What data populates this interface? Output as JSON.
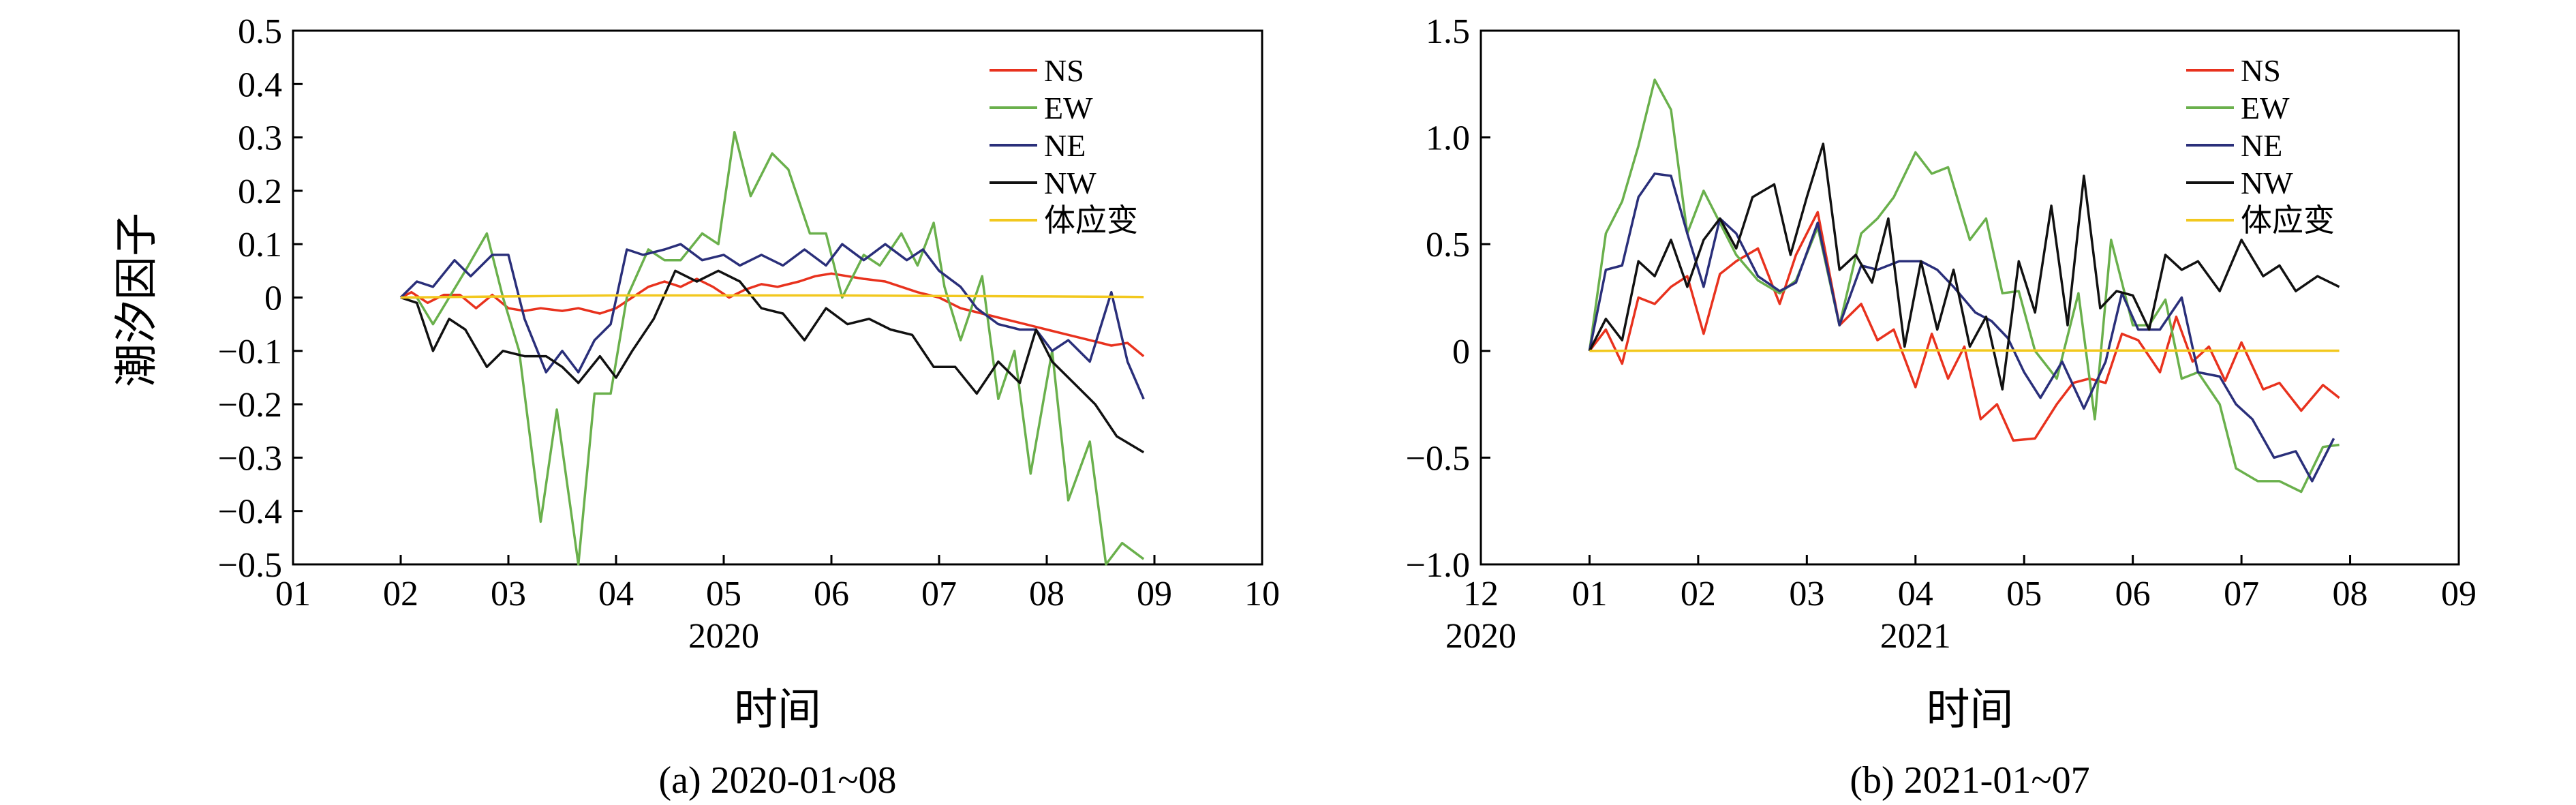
{
  "y_axis_label": "潮汐因子",
  "chart_data": [
    {
      "type": "line",
      "caption": "(a) 2020-01~08",
      "xlabel": "时间",
      "year_label": "2020",
      "x_ticks": [
        "01",
        "02",
        "03",
        "04",
        "05",
        "06",
        "07",
        "08",
        "09",
        "10"
      ],
      "xlim": [
        1,
        10
      ],
      "ylim": [
        -0.5,
        0.5
      ],
      "y_ticks": [
        "−0.5",
        "−0.4",
        "−0.3",
        "−0.2",
        "−0.1",
        "0",
        "0.1",
        "0.2",
        "0.3",
        "0.4",
        "0.5"
      ],
      "legend_position": "top-right",
      "series": [
        {
          "name": "NS",
          "color": "#e8321e",
          "x": [
            2.0,
            2.1,
            2.25,
            2.4,
            2.55,
            2.7,
            2.85,
            3.0,
            3.15,
            3.3,
            3.5,
            3.65,
            3.85,
            4.0,
            4.15,
            4.3,
            4.45,
            4.6,
            4.75,
            4.9,
            5.05,
            5.2,
            5.35,
            5.5,
            5.7,
            5.85,
            6.0,
            6.15,
            6.3,
            6.5,
            6.65,
            6.8,
            7.0,
            7.2,
            7.4,
            7.6,
            7.8,
            8.0,
            8.2,
            8.4,
            8.6,
            8.75,
            8.9
          ],
          "y": [
            0,
            0.01,
            -0.01,
            0.005,
            0.005,
            -0.02,
            0.005,
            -0.02,
            -0.025,
            -0.02,
            -0.025,
            -0.02,
            -0.03,
            -0.02,
            0,
            0.02,
            0.03,
            0.02,
            0.035,
            0.02,
            0,
            0.015,
            0.025,
            0.02,
            0.03,
            0.04,
            0.045,
            0.04,
            0.035,
            0.03,
            0.02,
            0.01,
            0,
            -0.02,
            -0.03,
            -0.04,
            -0.05,
            -0.06,
            -0.07,
            -0.08,
            -0.09,
            -0.085,
            -0.11
          ]
        },
        {
          "name": "EW",
          "color": "#6ab04c",
          "x": [
            2.0,
            2.15,
            2.3,
            2.45,
            2.6,
            2.8,
            2.95,
            3.1,
            3.3,
            3.45,
            3.65,
            3.8,
            3.95,
            4.1,
            4.3,
            4.45,
            4.6,
            4.8,
            4.95,
            5.1,
            5.25,
            5.45,
            5.6,
            5.8,
            5.95,
            6.1,
            6.3,
            6.45,
            6.65,
            6.8,
            6.95,
            7.05,
            7.2,
            7.4,
            7.55,
            7.7,
            7.85,
            8.05,
            8.2,
            8.4,
            8.55,
            8.7,
            8.9
          ],
          "y": [
            0,
            0,
            -0.05,
            0,
            0.05,
            0.12,
            0,
            -0.1,
            -0.42,
            -0.21,
            -0.5,
            -0.18,
            -0.18,
            0,
            0.09,
            0.07,
            0.07,
            0.12,
            0.1,
            0.31,
            0.19,
            0.27,
            0.24,
            0.12,
            0.12,
            0,
            0.08,
            0.06,
            0.12,
            0.06,
            0.14,
            0.02,
            -0.08,
            0.04,
            -0.19,
            -0.1,
            -0.33,
            -0.1,
            -0.38,
            -0.27,
            -0.5,
            -0.46,
            -0.49
          ]
        },
        {
          "name": "NE",
          "color": "#2a2f7a",
          "x": [
            2.0,
            2.15,
            2.3,
            2.5,
            2.65,
            2.85,
            3.0,
            3.15,
            3.35,
            3.5,
            3.65,
            3.8,
            3.95,
            4.1,
            4.25,
            4.45,
            4.6,
            4.8,
            5.0,
            5.15,
            5.35,
            5.55,
            5.75,
            5.95,
            6.1,
            6.3,
            6.5,
            6.7,
            6.85,
            7.0,
            7.2,
            7.35,
            7.55,
            7.75,
            7.9,
            8.05,
            8.2,
            8.4,
            8.6,
            8.75,
            8.9
          ],
          "y": [
            0,
            0.03,
            0.02,
            0.07,
            0.04,
            0.08,
            0.08,
            -0.04,
            -0.14,
            -0.1,
            -0.14,
            -0.08,
            -0.05,
            0.09,
            0.08,
            0.09,
            0.1,
            0.07,
            0.08,
            0.06,
            0.08,
            0.06,
            0.09,
            0.06,
            0.1,
            0.07,
            0.1,
            0.07,
            0.09,
            0.05,
            0.02,
            -0.02,
            -0.05,
            -0.06,
            -0.06,
            -0.1,
            -0.08,
            -0.12,
            0.01,
            -0.12,
            -0.19
          ]
        },
        {
          "name": "NW",
          "color": "#111111",
          "x": [
            2.0,
            2.15,
            2.3,
            2.45,
            2.6,
            2.8,
            2.95,
            3.15,
            3.35,
            3.5,
            3.65,
            3.85,
            4.0,
            4.15,
            4.35,
            4.55,
            4.75,
            4.95,
            5.15,
            5.35,
            5.55,
            5.75,
            5.95,
            6.15,
            6.35,
            6.55,
            6.75,
            6.95,
            7.15,
            7.35,
            7.55,
            7.75,
            7.9,
            8.05,
            8.25,
            8.45,
            8.65,
            8.9
          ],
          "y": [
            0,
            -0.01,
            -0.1,
            -0.04,
            -0.06,
            -0.13,
            -0.1,
            -0.11,
            -0.11,
            -0.13,
            -0.16,
            -0.11,
            -0.15,
            -0.1,
            -0.04,
            0.05,
            0.03,
            0.05,
            0.03,
            -0.02,
            -0.03,
            -0.08,
            -0.02,
            -0.05,
            -0.04,
            -0.06,
            -0.07,
            -0.13,
            -0.13,
            -0.18,
            -0.12,
            -0.16,
            -0.06,
            -0.12,
            -0.16,
            -0.2,
            -0.26,
            -0.29
          ]
        },
        {
          "name": "体应变",
          "color": "#f2c81e",
          "x": [
            2.0,
            3.0,
            4.0,
            5.0,
            6.0,
            7.0,
            8.0,
            8.9
          ],
          "y": [
            0,
            0.002,
            0.004,
            0.004,
            0.004,
            0.003,
            0.002,
            0.001
          ]
        }
      ]
    },
    {
      "type": "line",
      "caption": "(b) 2021-01~07",
      "xlabel": "时间",
      "year_label": "2021",
      "first_tick_year": "2020",
      "x_ticks": [
        "12",
        "01",
        "02",
        "03",
        "04",
        "05",
        "06",
        "07",
        "08",
        "09"
      ],
      "xlim": [
        0,
        9
      ],
      "ylim": [
        -1.0,
        1.5
      ],
      "y_ticks": [
        "−1.0",
        "−0.5",
        "0",
        "0.5",
        "1.0",
        "1.5"
      ],
      "legend_position": "top-right",
      "series": [
        {
          "name": "NS",
          "color": "#e8321e",
          "x": [
            1.0,
            1.15,
            1.3,
            1.45,
            1.6,
            1.75,
            1.9,
            2.05,
            2.2,
            2.35,
            2.55,
            2.75,
            2.9,
            3.1,
            3.3,
            3.5,
            3.65,
            3.8,
            4.0,
            4.15,
            4.3,
            4.45,
            4.6,
            4.75,
            4.9,
            5.1,
            5.3,
            5.45,
            5.6,
            5.75,
            5.9,
            6.05,
            6.25,
            6.4,
            6.55,
            6.7,
            6.85,
            7.0,
            7.2,
            7.35,
            7.55,
            7.75,
            7.9
          ],
          "y": [
            0,
            0.1,
            -0.06,
            0.25,
            0.22,
            0.3,
            0.35,
            0.08,
            0.36,
            0.42,
            0.48,
            0.22,
            0.45,
            0.65,
            0.12,
            0.22,
            0.05,
            0.1,
            -0.17,
            0.08,
            -0.13,
            0.02,
            -0.32,
            -0.25,
            -0.42,
            -0.41,
            -0.25,
            -0.15,
            -0.13,
            -0.15,
            0.08,
            0.05,
            -0.1,
            0.16,
            -0.05,
            0.02,
            -0.14,
            0.04,
            -0.18,
            -0.15,
            -0.28,
            -0.16,
            -0.22
          ]
        },
        {
          "name": "EW",
          "color": "#6ab04c",
          "x": [
            1.0,
            1.15,
            1.3,
            1.45,
            1.6,
            1.75,
            1.9,
            2.05,
            2.2,
            2.35,
            2.55,
            2.75,
            2.9,
            3.1,
            3.3,
            3.5,
            3.65,
            3.8,
            4.0,
            4.15,
            4.3,
            4.5,
            4.65,
            4.8,
            4.95,
            5.1,
            5.3,
            5.5,
            5.65,
            5.8,
            6.0,
            6.15,
            6.3,
            6.45,
            6.6,
            6.8,
            6.95,
            7.15,
            7.35,
            7.55,
            7.75,
            7.9
          ],
          "y": [
            0,
            0.55,
            0.7,
            0.96,
            1.27,
            1.13,
            0.55,
            0.75,
            0.6,
            0.45,
            0.33,
            0.27,
            0.33,
            0.58,
            0.12,
            0.55,
            0.62,
            0.72,
            0.93,
            0.83,
            0.86,
            0.52,
            0.62,
            0.27,
            0.28,
            0,
            -0.13,
            0.27,
            -0.32,
            0.52,
            0.12,
            0.12,
            0.24,
            -0.13,
            -0.1,
            -0.25,
            -0.55,
            -0.61,
            -0.61,
            -0.66,
            -0.45,
            -0.44
          ]
        },
        {
          "name": "NE",
          "color": "#2a2f7a",
          "x": [
            1.0,
            1.15,
            1.3,
            1.45,
            1.6,
            1.75,
            1.9,
            2.05,
            2.2,
            2.35,
            2.55,
            2.75,
            2.9,
            3.1,
            3.3,
            3.5,
            3.65,
            3.85,
            4.05,
            4.2,
            4.35,
            4.55,
            4.7,
            4.85,
            5.0,
            5.15,
            5.35,
            5.55,
            5.75,
            5.9,
            6.05,
            6.25,
            6.45,
            6.6,
            6.8,
            6.95,
            7.1,
            7.3,
            7.5,
            7.65,
            7.85
          ],
          "y": [
            0,
            0.38,
            0.4,
            0.72,
            0.83,
            0.82,
            0.55,
            0.3,
            0.62,
            0.55,
            0.35,
            0.28,
            0.32,
            0.6,
            0.12,
            0.4,
            0.38,
            0.42,
            0.42,
            0.38,
            0.3,
            0.18,
            0.14,
            0.06,
            -0.1,
            -0.22,
            -0.05,
            -0.27,
            -0.05,
            0.27,
            0.1,
            0.1,
            0.25,
            -0.1,
            -0.12,
            -0.25,
            -0.32,
            -0.5,
            -0.47,
            -0.61,
            -0.41
          ]
        },
        {
          "name": "NW",
          "color": "#111111",
          "x": [
            1.0,
            1.15,
            1.3,
            1.45,
            1.6,
            1.75,
            1.9,
            2.05,
            2.2,
            2.35,
            2.5,
            2.7,
            2.85,
            3.0,
            3.15,
            3.3,
            3.45,
            3.6,
            3.75,
            3.9,
            4.05,
            4.2,
            4.35,
            4.5,
            4.65,
            4.8,
            4.95,
            5.1,
            5.25,
            5.4,
            5.55,
            5.7,
            5.85,
            6.0,
            6.15,
            6.3,
            6.45,
            6.6,
            6.8,
            7.0,
            7.2,
            7.35,
            7.5,
            7.7,
            7.9
          ],
          "y": [
            0,
            0.15,
            0.05,
            0.42,
            0.35,
            0.52,
            0.3,
            0.52,
            0.62,
            0.48,
            0.72,
            0.78,
            0.45,
            0.72,
            0.97,
            0.38,
            0.45,
            0.32,
            0.62,
            0.02,
            0.42,
            0.1,
            0.38,
            0.02,
            0.16,
            -0.18,
            0.42,
            0.18,
            0.68,
            0.12,
            0.82,
            0.2,
            0.28,
            0.26,
            0.1,
            0.45,
            0.38,
            0.42,
            0.28,
            0.52,
            0.35,
            0.4,
            0.28,
            0.35,
            0.3
          ]
        },
        {
          "name": "体应变",
          "color": "#f2c81e",
          "x": [
            1.0,
            2.0,
            3.0,
            4.0,
            5.0,
            6.0,
            7.0,
            7.9
          ],
          "y": [
            0,
            0.002,
            0.003,
            0.003,
            0.002,
            0.002,
            0.001,
            0.001
          ]
        }
      ]
    }
  ]
}
